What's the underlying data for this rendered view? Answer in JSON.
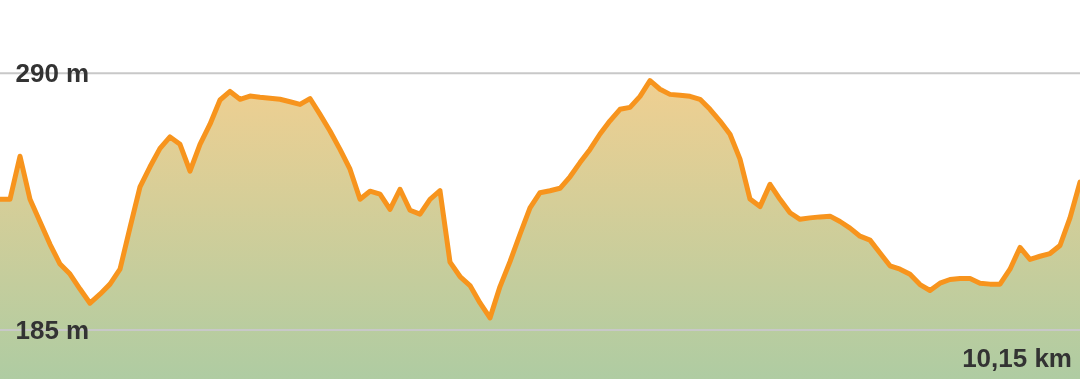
{
  "chart_data": {
    "type": "area",
    "categories": [
      null,
      null,
      null,
      null,
      null,
      null,
      null,
      null,
      null,
      null,
      null,
      null,
      null,
      null,
      null,
      null,
      null,
      null,
      null,
      null,
      null,
      null,
      null,
      null,
      null,
      null,
      null,
      null,
      null,
      null,
      null,
      null,
      null,
      null,
      null,
      null,
      null,
      null,
      null,
      null,
      null,
      null,
      null,
      null,
      null,
      null,
      null,
      null,
      null,
      null,
      null,
      null,
      null,
      null,
      null,
      null,
      null,
      null,
      null,
      null,
      null,
      null,
      null,
      null,
      null,
      null,
      null,
      null,
      null,
      null,
      null,
      null,
      null,
      null,
      null,
      null,
      null,
      null,
      null,
      null,
      null,
      null,
      null,
      null,
      null,
      null,
      null,
      null,
      null,
      null,
      null,
      null,
      null,
      null,
      null,
      null,
      null,
      null,
      null,
      null,
      null,
      null,
      null,
      null,
      null,
      null,
      null,
      null,
      null
    ],
    "series": [
      {
        "color": "#f7941d",
        "values": [
          238.5,
          238.5,
          256.1,
          238.5,
          229.3,
          220.1,
          212.0,
          207.9,
          201.8,
          196,
          199.7,
          203.8,
          209.9,
          226.9,
          243.6,
          251.8,
          259.3,
          264,
          261.0,
          250.0,
          261.0,
          269.2,
          279.1,
          282.6,
          279.4,
          280.7,
          280.2,
          279.8,
          279.4,
          278.4,
          277.3,
          279.7,
          273.2,
          266.4,
          258.9,
          250.8,
          238.5,
          241.8,
          240.6,
          234.4,
          242.6,
          234.0,
          232.4,
          238.5,
          242,
          212.8,
          206.9,
          203.2,
          196.1,
          190,
          202.8,
          213.0,
          224.2,
          235.0,
          241.2,
          242.0,
          243.0,
          247.7,
          253.5,
          258.9,
          265.2,
          270.6,
          275.3,
          276.1,
          280.6,
          287,
          283.5,
          281.4,
          281.0,
          280.6,
          279.4,
          275.3,
          270.5,
          265.1,
          254.9,
          238.6,
          235.5,
          244.6,
          238.5,
          233.0,
          230.3,
          230.9,
          231.3,
          231.6,
          229.4,
          226.7,
          223.4,
          221.8,
          216.5,
          211.3,
          209.9,
          207.8,
          203.6,
          201.2,
          204.2,
          205.7,
          206.1,
          206.1,
          204.2,
          203.8,
          203.8,
          209.9,
          218.8,
          213.9,
          215.2,
          216.3,
          219.6,
          230.9,
          245.5
        ]
      }
    ],
    "ylim": [
      165,
      320
    ],
    "yticks": [
      {
        "value": 290,
        "label": "290 m"
      },
      {
        "value": 185,
        "label": "185 m"
      }
    ],
    "annotations": [
      "10,15 km"
    ],
    "grid": "y"
  }
}
